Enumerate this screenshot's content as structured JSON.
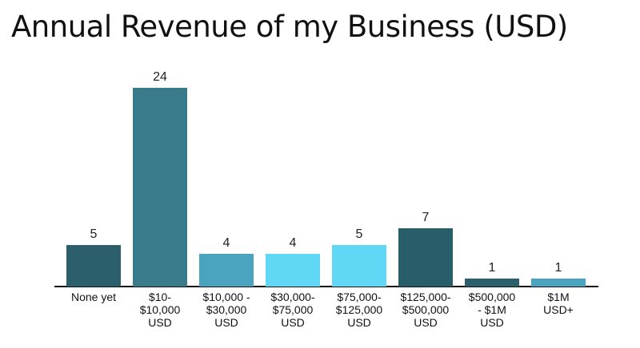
{
  "chart_data": {
    "type": "bar",
    "title": "Annual Revenue of my Business (USD)",
    "categories": [
      "None yet",
      "$10-\n$10,000\nUSD",
      "$10,000 -\n$30,000\nUSD",
      "$30,000-\n$75,000\nUSD",
      "$75,000-\n$125,000\nUSD",
      "$125,000-\n$500,000\nUSD",
      "$500,000\n- $1M\nUSD",
      "$1M\nUSD+"
    ],
    "values": [
      5,
      24,
      4,
      4,
      5,
      7,
      1,
      1
    ],
    "colors": [
      "#2b5f6b",
      "#3a7b8b",
      "#4aa3bf",
      "#5fd7f5",
      "#5fd7f5",
      "#285e6a",
      "#2b5f6b",
      "#4aa3bf"
    ]
  }
}
